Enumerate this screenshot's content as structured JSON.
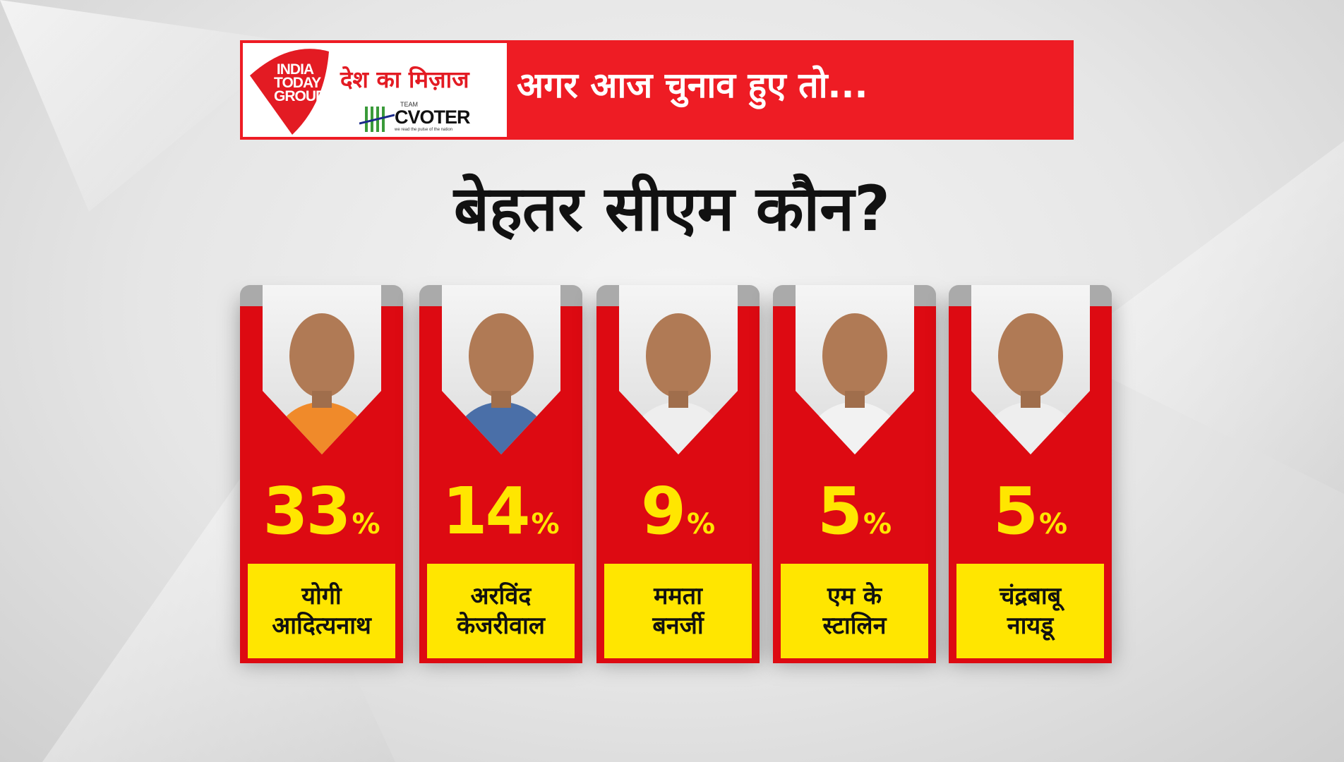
{
  "header": {
    "logo_text": "INDIA TODAY GROUP",
    "show_name": "देश का मिज़ाज",
    "partner_team": "TEAM",
    "partner_name": "CVOTER",
    "partner_tagline": "we read the pulse of the nation",
    "headline": "अगर आज चुनाव हुए तो..."
  },
  "title": "बेहतर सीएम कौन?",
  "colors": {
    "header_red": "#ee1c24",
    "card_red": "#dd0a12",
    "highlight_yellow": "#ffe600"
  },
  "chart_data": {
    "type": "bar",
    "title": "बेहतर सीएम कौन?",
    "categories": [
      "योगी आदित्यनाथ",
      "अरविंद केजरीवाल",
      "ममता बनर्जी",
      "एम के स्टालिन",
      "चंद्रबाबू नायडू"
    ],
    "values": [
      33,
      14,
      9,
      5,
      5
    ],
    "unit": "%",
    "name_lines": [
      [
        "योगी",
        "आदित्यनाथ"
      ],
      [
        "अरविंद",
        "केजरीवाल"
      ],
      [
        "ममता",
        "बनर्जी"
      ],
      [
        "एम के",
        "स्टालिन"
      ],
      [
        "चंद्रबाबू",
        "नायडू"
      ]
    ],
    "photo_tints": [
      "#f08a2a",
      "#4a6fa8",
      "#eeeeee",
      "#f2f2f2",
      "#eeeeee"
    ]
  }
}
